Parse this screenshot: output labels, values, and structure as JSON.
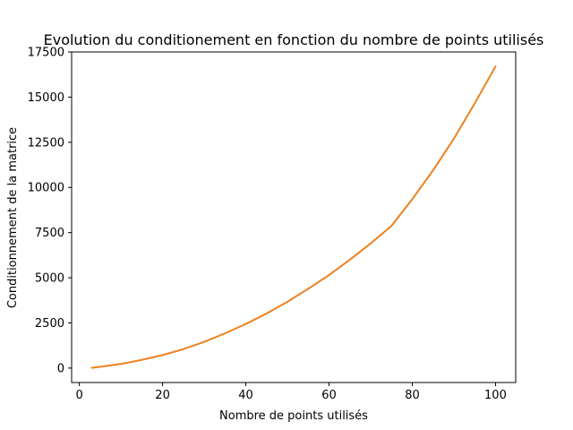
{
  "chart_data": {
    "type": "line",
    "title": "Evolution du conditionement en fonction du nombre de points utilisés",
    "xlabel": "Nombre de points utilisés",
    "ylabel": "Conditionnement de la matrice",
    "xlim": [
      -1.85,
      104.85
    ],
    "ylim": [
      -800,
      17500
    ],
    "xticks": [
      0,
      20,
      40,
      60,
      80,
      100
    ],
    "yticks": [
      0,
      2500,
      5000,
      7500,
      10000,
      12500,
      15000,
      17500
    ],
    "grid": false,
    "legend": "none",
    "series": [
      {
        "color": "#1f77b4",
        "x": [
          3,
          5,
          10,
          15,
          20,
          25,
          30,
          35,
          40,
          45,
          50,
          55,
          60,
          65,
          70,
          75,
          80,
          85,
          90,
          95,
          100
        ],
        "y": [
          15,
          70,
          230,
          450,
          720,
          1050,
          1450,
          1920,
          2440,
          3020,
          3670,
          4390,
          5150,
          6000,
          6900,
          7870,
          9350,
          10950,
          12700,
          14650,
          16700
        ]
      },
      {
        "color": "#ff7f0e",
        "x": [
          3,
          5,
          10,
          15,
          20,
          25,
          30,
          35,
          40,
          45,
          50,
          55,
          60,
          65,
          70,
          75,
          80,
          85,
          90,
          95,
          100
        ],
        "y": [
          15,
          70,
          230,
          450,
          720,
          1050,
          1450,
          1920,
          2440,
          3020,
          3670,
          4390,
          5150,
          6000,
          6900,
          7870,
          9350,
          10950,
          12700,
          14650,
          16700
        ]
      }
    ]
  }
}
